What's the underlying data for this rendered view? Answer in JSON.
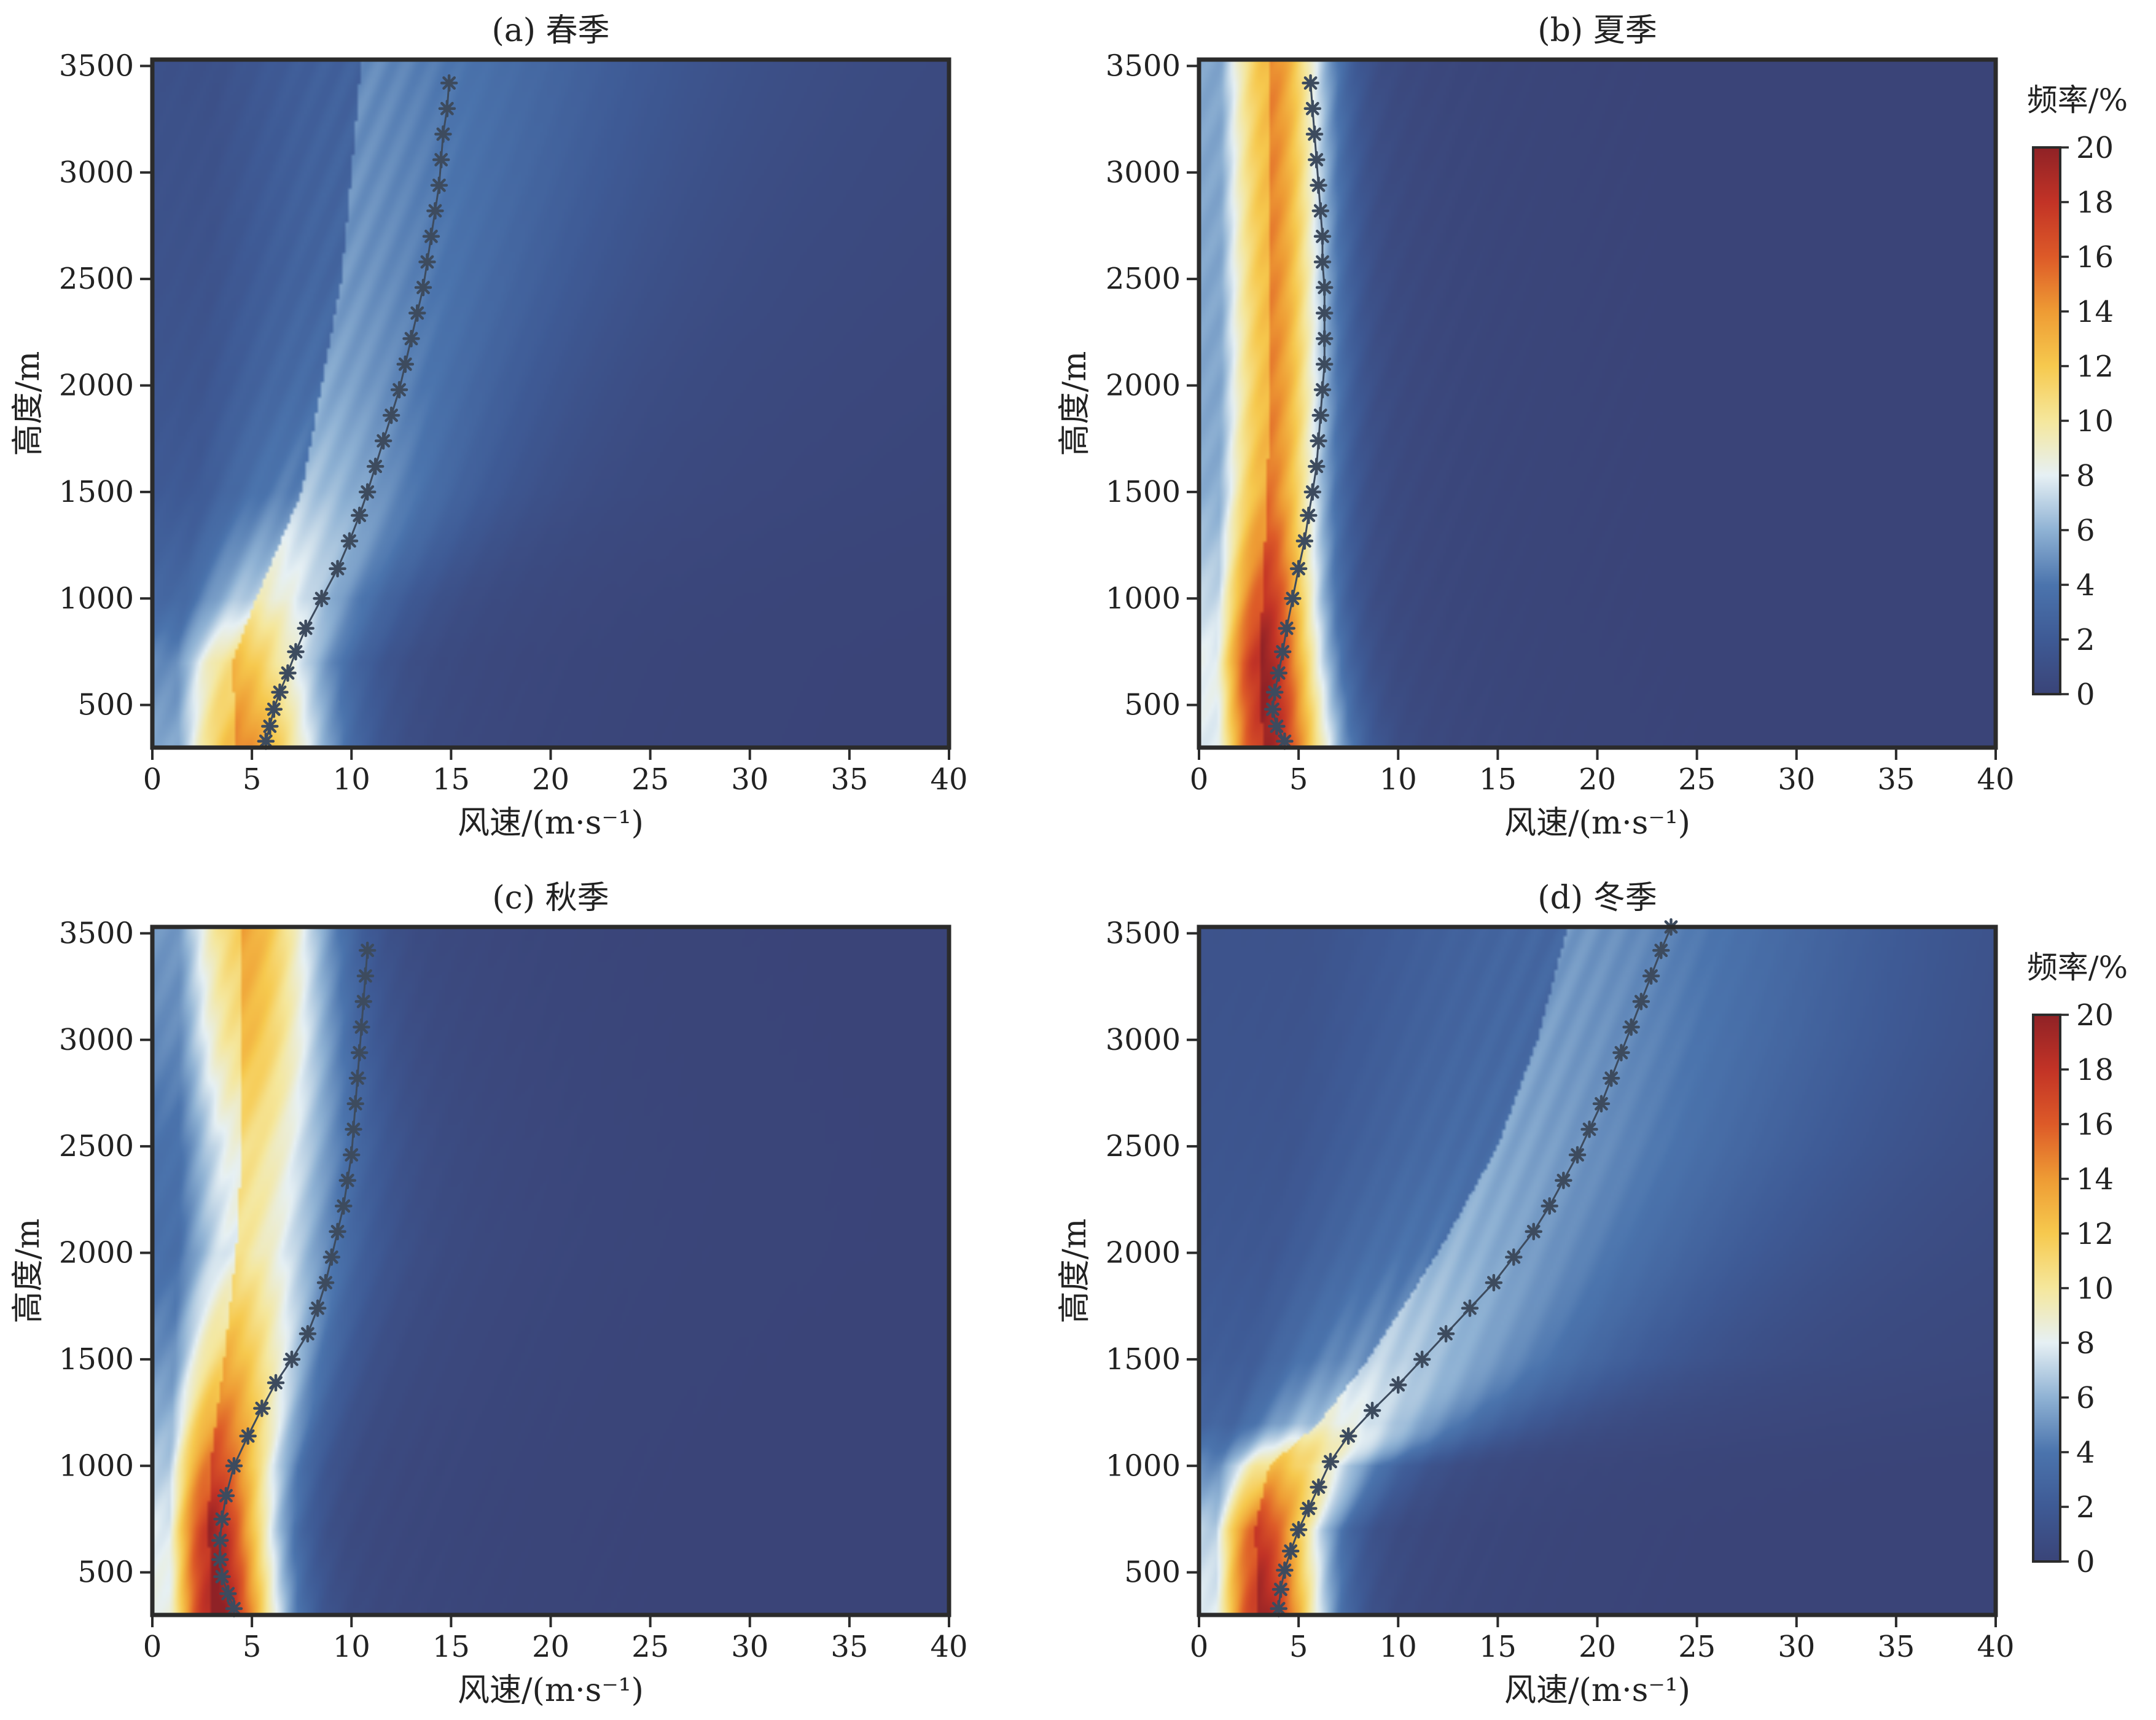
{
  "chart_data": [
    {
      "type": "heatmap",
      "title": "(a) 春季",
      "xlabel": "风速/(m·s⁻¹)",
      "ylabel": "高度/m",
      "xlim": [
        0,
        40
      ],
      "ylim": [
        300,
        3530
      ],
      "xticks": [
        0,
        5,
        10,
        15,
        20,
        25,
        30,
        35,
        40
      ],
      "yticks": [
        500,
        1000,
        1500,
        2000,
        2500,
        3000,
        3500
      ],
      "grid": false,
      "has_colorbar": false,
      "mean_profile": {
        "y": [
          330,
          400,
          480,
          560,
          650,
          750,
          860,
          1000,
          1140,
          1270,
          1390,
          1500,
          1620,
          1740,
          1860,
          1980,
          2100,
          2220,
          2340,
          2460,
          2580,
          2700,
          2820,
          2940,
          3060,
          3180,
          3300,
          3420
        ],
        "x": [
          5.7,
          5.9,
          6.1,
          6.4,
          6.8,
          7.2,
          7.7,
          8.5,
          9.3,
          9.9,
          10.4,
          10.8,
          11.2,
          11.6,
          12.0,
          12.4,
          12.7,
          13.0,
          13.3,
          13.6,
          13.8,
          14.0,
          14.2,
          14.4,
          14.5,
          14.6,
          14.8,
          14.9
        ]
      },
      "frequency_field": {
        "core": [
          [
            330,
            4.2,
            12.5
          ],
          [
            700,
            4.0,
            10.5
          ],
          [
            1000,
            5.2,
            7.0
          ],
          [
            1500,
            7.5,
            4.5
          ],
          [
            2000,
            8.5,
            3.5
          ],
          [
            2500,
            9.5,
            3.0
          ],
          [
            3000,
            10.0,
            2.8
          ],
          [
            3530,
            10.5,
            2.6
          ]
        ],
        "spread": [
          [
            330,
            3.2
          ],
          [
            700,
            3.4
          ],
          [
            1000,
            4.0
          ],
          [
            1500,
            5.5
          ],
          [
            2000,
            6.5
          ],
          [
            2500,
            7.5
          ],
          [
            3000,
            8.5
          ],
          [
            3530,
            9.5
          ]
        ]
      }
    },
    {
      "type": "heatmap",
      "title": "(b) 夏季",
      "xlabel": "风速/(m·s⁻¹)",
      "ylabel": "高度/m",
      "xlim": [
        0,
        40
      ],
      "ylim": [
        300,
        3530
      ],
      "xticks": [
        0,
        5,
        10,
        15,
        20,
        25,
        30,
        35,
        40
      ],
      "yticks": [
        500,
        1000,
        1500,
        2000,
        2500,
        3000,
        3500
      ],
      "grid": false,
      "has_colorbar": true,
      "mean_profile": {
        "y": [
          330,
          400,
          480,
          560,
          650,
          750,
          860,
          1000,
          1140,
          1270,
          1390,
          1500,
          1620,
          1740,
          1860,
          1980,
          2100,
          2220,
          2340,
          2460,
          2580,
          2700,
          2820,
          2940,
          3060,
          3180,
          3300,
          3420
        ],
        "x": [
          4.3,
          3.9,
          3.7,
          3.8,
          4.0,
          4.2,
          4.4,
          4.7,
          5.0,
          5.3,
          5.5,
          5.7,
          5.9,
          6.0,
          6.1,
          6.2,
          6.3,
          6.3,
          6.3,
          6.3,
          6.2,
          6.2,
          6.1,
          6.0,
          5.9,
          5.8,
          5.7,
          5.6
        ]
      },
      "frequency_field": {
        "core": [
          [
            330,
            3.2,
            17.5
          ],
          [
            700,
            3.0,
            18.0
          ],
          [
            1000,
            3.2,
            16.0
          ],
          [
            1500,
            3.4,
            13.0
          ],
          [
            2000,
            3.6,
            12.5
          ],
          [
            2500,
            3.6,
            12.5
          ],
          [
            3000,
            3.6,
            12.5
          ],
          [
            3530,
            3.6,
            12.5
          ]
        ],
        "spread": [
          [
            330,
            2.4
          ],
          [
            700,
            2.2
          ],
          [
            1000,
            2.0
          ],
          [
            1500,
            2.0
          ],
          [
            2000,
            2.0
          ],
          [
            2500,
            2.0
          ],
          [
            3000,
            2.0
          ],
          [
            3530,
            2.0
          ]
        ]
      }
    },
    {
      "type": "heatmap",
      "title": "(c) 秋季",
      "xlabel": "风速/(m·s⁻¹)",
      "ylabel": "高度/m",
      "xlim": [
        0,
        40
      ],
      "ylim": [
        300,
        3530
      ],
      "xticks": [
        0,
        5,
        10,
        15,
        20,
        25,
        30,
        35,
        40
      ],
      "yticks": [
        500,
        1000,
        1500,
        2000,
        2500,
        3000,
        3500
      ],
      "grid": false,
      "has_colorbar": false,
      "mean_profile": {
        "y": [
          330,
          400,
          480,
          560,
          650,
          750,
          860,
          1000,
          1140,
          1270,
          1390,
          1500,
          1620,
          1740,
          1860,
          1980,
          2100,
          2220,
          2340,
          2460,
          2580,
          2700,
          2820,
          2940,
          3060,
          3180,
          3300,
          3420
        ],
        "x": [
          4.1,
          3.8,
          3.5,
          3.4,
          3.4,
          3.5,
          3.7,
          4.1,
          4.8,
          5.5,
          6.2,
          7.0,
          7.8,
          8.3,
          8.7,
          9.0,
          9.3,
          9.6,
          9.8,
          10.0,
          10.1,
          10.2,
          10.3,
          10.4,
          10.5,
          10.6,
          10.7,
          10.8
        ]
      },
      "frequency_field": {
        "core": [
          [
            330,
            3.0,
            18.5
          ],
          [
            700,
            2.8,
            17.5
          ],
          [
            1000,
            2.9,
            15.0
          ],
          [
            1500,
            3.6,
            11.0
          ],
          [
            2000,
            4.2,
            8.0
          ],
          [
            2500,
            4.5,
            8.5
          ],
          [
            3000,
            4.5,
            10.5
          ],
          [
            3530,
            4.5,
            11.5
          ]
        ],
        "spread": [
          [
            330,
            2.3
          ],
          [
            700,
            2.3
          ],
          [
            1000,
            2.5
          ],
          [
            1500,
            3.0
          ],
          [
            2000,
            3.5
          ],
          [
            2500,
            3.5
          ],
          [
            3000,
            3.2
          ],
          [
            3530,
            3.0
          ]
        ]
      }
    },
    {
      "type": "heatmap",
      "title": "(d) 冬季",
      "xlabel": "风速/(m·s⁻¹)",
      "ylabel": "高度/m",
      "xlim": [
        0,
        40
      ],
      "ylim": [
        300,
        3530
      ],
      "xticks": [
        0,
        5,
        10,
        15,
        20,
        25,
        30,
        35,
        40
      ],
      "yticks": [
        500,
        1000,
        1500,
        2000,
        2500,
        3000,
        3500
      ],
      "grid": false,
      "has_colorbar": true,
      "mean_profile": {
        "y": [
          330,
          420,
          510,
          600,
          700,
          800,
          900,
          1020,
          1140,
          1260,
          1380,
          1500,
          1620,
          1740,
          1860,
          1980,
          2100,
          2220,
          2340,
          2460,
          2580,
          2700,
          2820,
          2940,
          3060,
          3180,
          3300,
          3420,
          3530
        ],
        "x": [
          4.0,
          4.1,
          4.3,
          4.6,
          5.0,
          5.5,
          6.0,
          6.6,
          7.5,
          8.7,
          10.0,
          11.2,
          12.4,
          13.6,
          14.8,
          15.8,
          16.8,
          17.6,
          18.3,
          19.0,
          19.6,
          20.2,
          20.7,
          21.2,
          21.7,
          22.2,
          22.7,
          23.2,
          23.7
        ]
      },
      "frequency_field": {
        "core": [
          [
            330,
            3.0,
            17.5
          ],
          [
            700,
            2.8,
            15.5
          ],
          [
            1000,
            3.5,
            10.5
          ],
          [
            1200,
            6.0,
            6.5
          ],
          [
            1500,
            8.5,
            5.0
          ],
          [
            2000,
            12.0,
            4.0
          ],
          [
            2500,
            15.0,
            3.5
          ],
          [
            3000,
            17.0,
            3.2
          ],
          [
            3530,
            18.5,
            3.0
          ]
        ],
        "spread": [
          [
            330,
            2.2
          ],
          [
            700,
            2.4
          ],
          [
            1000,
            3.5
          ],
          [
            1200,
            5.5
          ],
          [
            1500,
            8.0
          ],
          [
            2000,
            9.5
          ],
          [
            2500,
            10.5
          ],
          [
            3000,
            11.0
          ],
          [
            3530,
            11.0
          ]
        ]
      }
    }
  ],
  "colorbar": {
    "label": "频率/%",
    "min": 0,
    "max": 20,
    "ticks": [
      0,
      2,
      4,
      6,
      8,
      10,
      12,
      14,
      16,
      18,
      20
    ],
    "colors": [
      [
        0,
        "#3a4478"
      ],
      [
        2,
        "#3e5a95"
      ],
      [
        4,
        "#4b74ad"
      ],
      [
        6,
        "#8fb2d4"
      ],
      [
        8,
        "#e6f0f4"
      ],
      [
        10,
        "#f5e79c"
      ],
      [
        12,
        "#f6c94e"
      ],
      [
        14,
        "#ee9b34"
      ],
      [
        16,
        "#dd5a28"
      ],
      [
        18,
        "#c23326"
      ],
      [
        20,
        "#8f2226"
      ]
    ]
  },
  "marker_color": "#3d4b5e"
}
